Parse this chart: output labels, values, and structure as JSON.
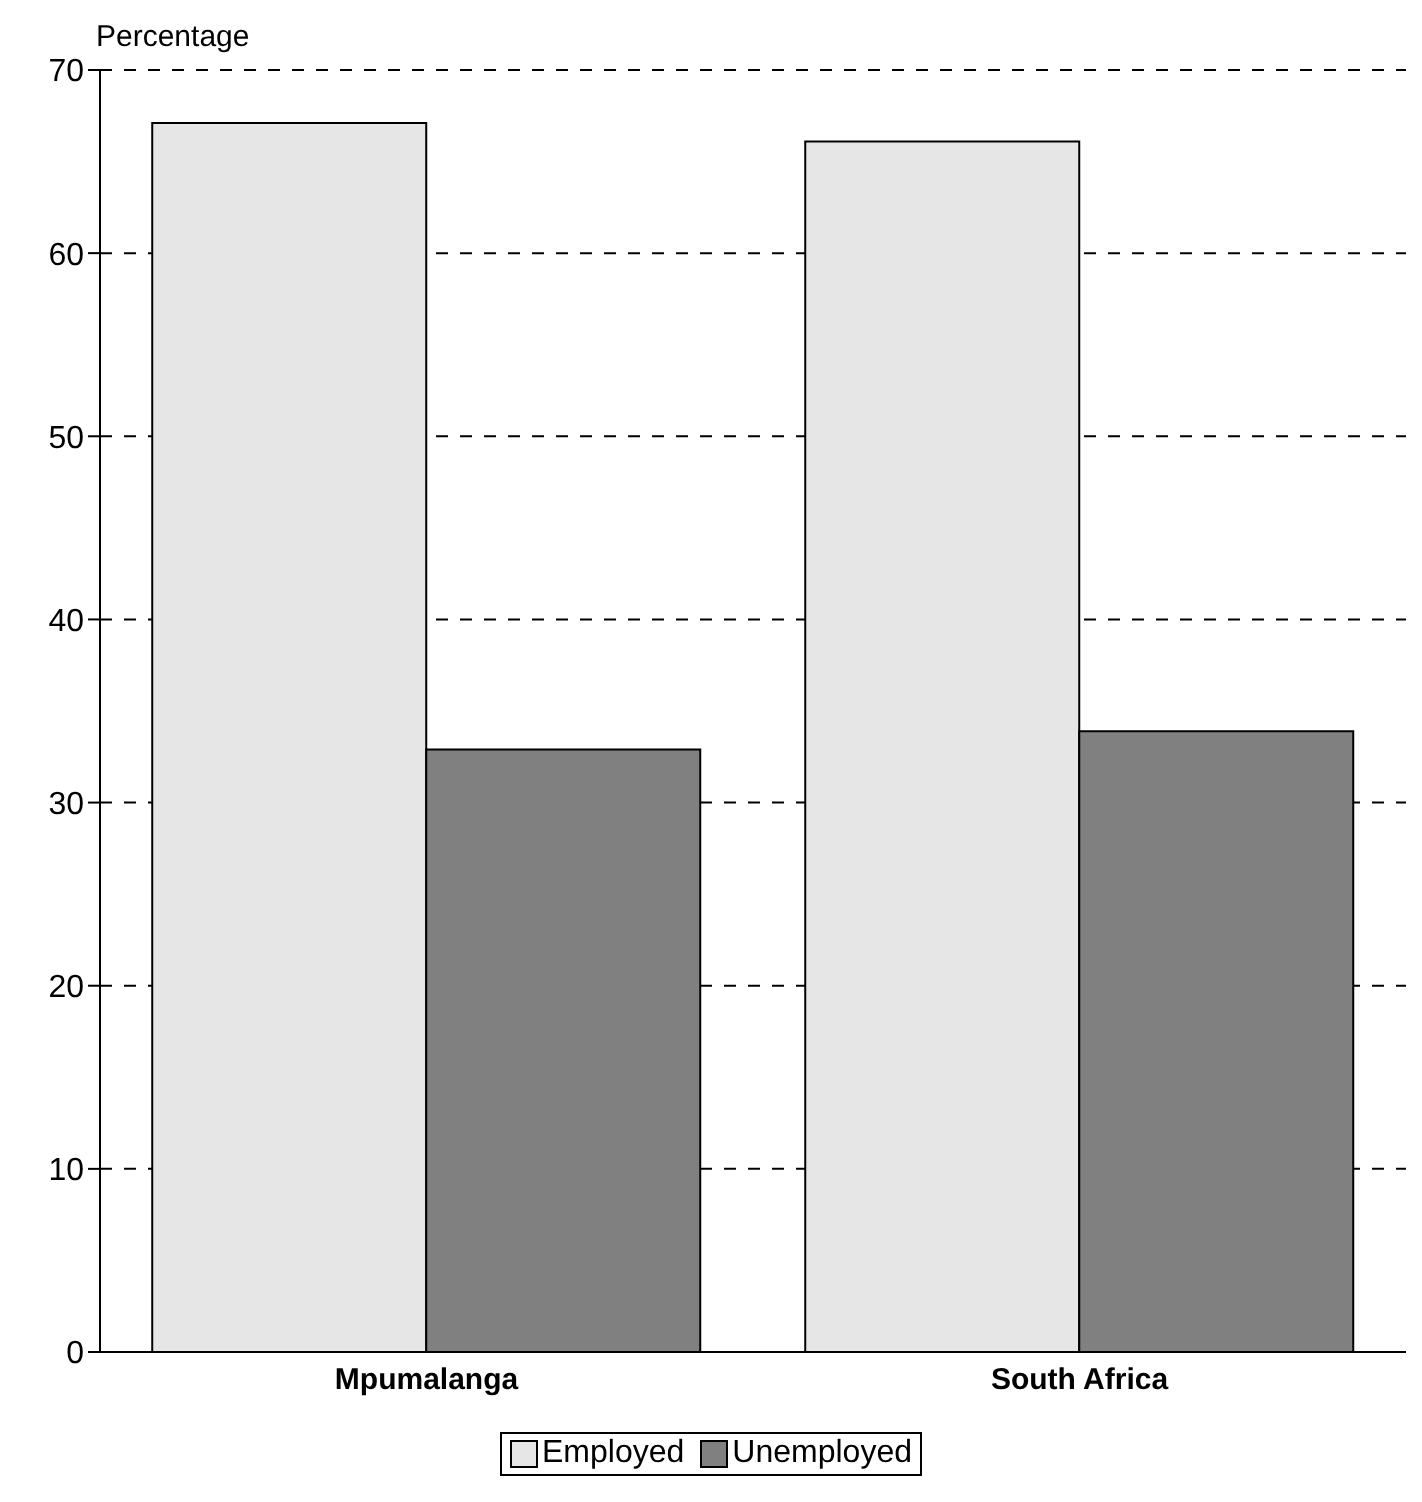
{
  "chart_data": {
    "type": "bar",
    "ylabel": "Percentage",
    "categories": [
      "Mpumalanga",
      "South Africa"
    ],
    "series": [
      {
        "name": "Employed",
        "color": "#e6e6e6",
        "values": [
          67.1,
          66.1
        ]
      },
      {
        "name": "Unemployed",
        "color": "#808080",
        "values": [
          32.9,
          33.9
        ]
      }
    ],
    "ylim": [
      0,
      70
    ],
    "yticks": [
      0,
      10,
      20,
      30,
      40,
      50,
      60,
      70
    ],
    "grid": "y",
    "legend": "bottom"
  }
}
